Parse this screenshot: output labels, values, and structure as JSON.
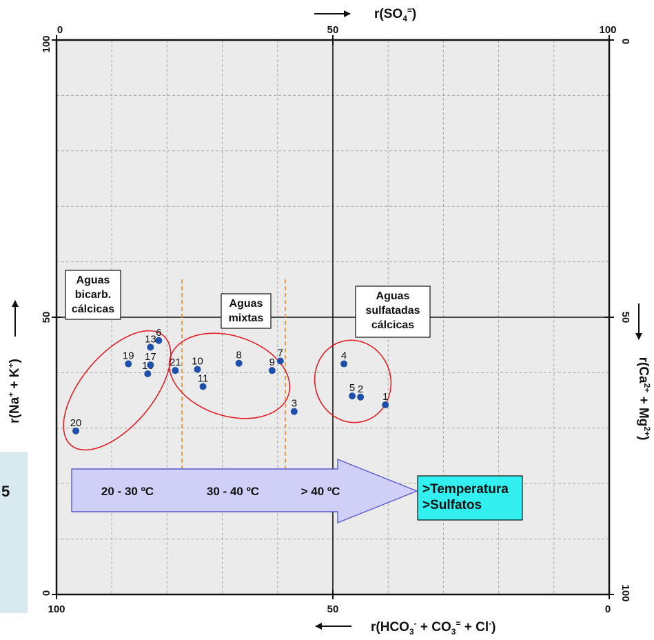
{
  "chart_data": {
    "type": "scatter",
    "axes": {
      "bottom": {
        "label_main": "r(HCO",
        "sub1": "3",
        "sup1": "-",
        "mid1": " + CO",
        "sub2": "3",
        "sup2": "=",
        "mid2": "  + Cl",
        "sup3": "-",
        "end": ")",
        "ticks": [
          "100",
          "50",
          "0"
        ]
      },
      "top": {
        "label_main": "r(SO",
        "sub1": "4",
        "sup1": "=",
        "end": ")",
        "ticks": [
          "0",
          "50",
          "100"
        ]
      },
      "left": {
        "label_main": "r(Na",
        "sup1": "+",
        "mid1": " + K",
        "sup2": "+",
        "end": ")",
        "ticks": [
          "0",
          "50",
          "100"
        ]
      },
      "right": {
        "label_main": "r(Ca",
        "sup1": "2+",
        "mid1": " + Mg",
        "sup2": "2+",
        "end": ")",
        "ticks": [
          "0",
          "50",
          "100"
        ]
      }
    },
    "xlim": [
      100,
      0
    ],
    "ylim": [
      0,
      100
    ],
    "grid": true,
    "points": [
      {
        "label": "1",
        "x": 40.5,
        "y": 34.2
      },
      {
        "label": "2",
        "x": 45.0,
        "y": 35.6
      },
      {
        "label": "3",
        "x": 57.0,
        "y": 33.0
      },
      {
        "label": "4",
        "x": 48.0,
        "y": 41.6
      },
      {
        "label": "5",
        "x": 46.5,
        "y": 35.8
      },
      {
        "label": "6",
        "x": 81.5,
        "y": 45.8
      },
      {
        "label": "7",
        "x": 59.5,
        "y": 42.1
      },
      {
        "label": "8",
        "x": 67.0,
        "y": 41.7
      },
      {
        "label": "9",
        "x": 61.0,
        "y": 40.4
      },
      {
        "label": "10",
        "x": 74.5,
        "y": 40.6
      },
      {
        "label": "11",
        "x": 73.5,
        "y": 37.5
      },
      {
        "label": "13",
        "x": 83.0,
        "y": 44.6
      },
      {
        "label": "16",
        "x": 83.5,
        "y": 39.8
      },
      {
        "label": "17",
        "x": 83.0,
        "y": 41.4
      },
      {
        "label": "19",
        "x": 87.0,
        "y": 41.6
      },
      {
        "label": "20",
        "x": 96.5,
        "y": 29.5
      },
      {
        "label": "21",
        "x": 78.5,
        "y": 40.4
      }
    ],
    "annotations": {
      "group_boxes": [
        {
          "lines": [
            "Aguas",
            "bicarb.",
            "cálcicas"
          ]
        },
        {
          "lines": [
            "Aguas",
            "mixtas"
          ]
        },
        {
          "lines": [
            "Aguas",
            "sulfatadas",
            "cálcicas"
          ]
        }
      ],
      "arrow_segments": [
        "20 - 30 ºC",
        "30 - 40 ºC",
        "> 40 ºC"
      ],
      "callout": [
        ">Temperatura",
        ">Sulfatos"
      ]
    },
    "colors": {
      "point": "#1f4fa8",
      "ellipse": "#e0202a",
      "dashed_divider": "#f28c28",
      "arrow_fill": "#cfcff7",
      "arrow_stroke": "#5a5ad0",
      "callout_fill": "#33f0f0",
      "plot_bg": "#ebebeb"
    }
  },
  "side_panel": {
    "char": "5"
  }
}
